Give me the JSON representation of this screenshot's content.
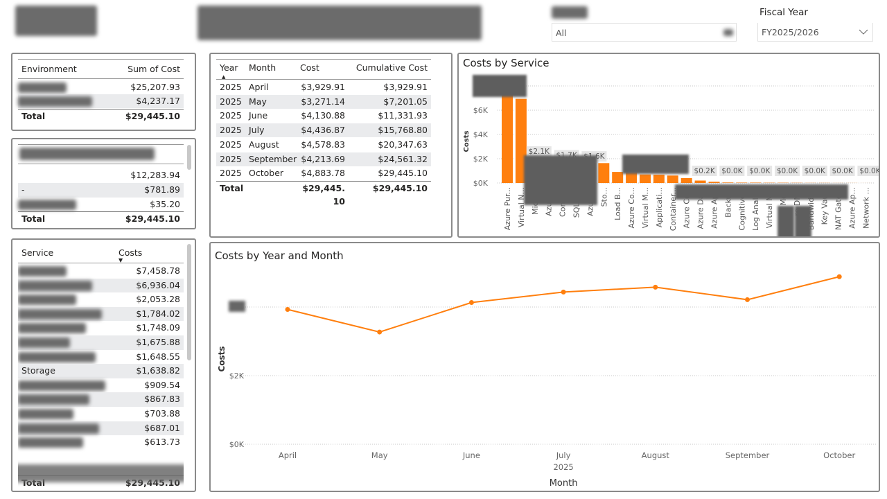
{
  "header": {
    "logo_text": "",
    "title": ""
  },
  "slicers": [
    {
      "label": "",
      "value": "All"
    },
    {
      "label": "Fiscal Year",
      "value": "FY2025/2026",
      "icon": "chevron-down-icon"
    }
  ],
  "environment_table": {
    "columns": [
      "Environment",
      "Sum of Cost"
    ],
    "rows": [
      {
        "name": "",
        "value": "$25,207.93"
      },
      {
        "name": "",
        "value": "$4,237.17"
      }
    ],
    "total_label": "Total",
    "total_value": "$29,445.10"
  },
  "second_table": {
    "rows": [
      {
        "name": "",
        "value": "$12,283.94"
      },
      {
        "name": "-",
        "value": "$781.89"
      },
      {
        "name": "",
        "value": "$35.20"
      }
    ],
    "total_label": "Total",
    "total_value": "$29,445.10"
  },
  "service_table": {
    "columns": [
      "Service",
      "Costs"
    ],
    "sort": "descending",
    "rows": [
      {
        "name": "",
        "value": "$7,458.78"
      },
      {
        "name": "",
        "value": "$6,936.04"
      },
      {
        "name": "",
        "value": "$2,053.28"
      },
      {
        "name": "",
        "value": "$1,784.02"
      },
      {
        "name": "",
        "value": "$1,748.09"
      },
      {
        "name": "",
        "value": "$1,675.88"
      },
      {
        "name": "",
        "value": "$1,648.55"
      },
      {
        "name": "Storage",
        "value": "$1,638.82"
      },
      {
        "name": "",
        "value": "$909.54"
      },
      {
        "name": "",
        "value": "$867.83"
      },
      {
        "name": "",
        "value": "$703.88"
      },
      {
        "name": "",
        "value": "$687.01"
      },
      {
        "name": "",
        "value": "$613.73"
      }
    ],
    "total_label": "Total",
    "total_value": "$29,445.10"
  },
  "month_table": {
    "columns": [
      "Year",
      "Month",
      "Cost",
      "Cumulative Cost"
    ],
    "rows": [
      [
        "2025",
        "April",
        "$3,929.91",
        "$3,929.91"
      ],
      [
        "2025",
        "May",
        "$3,271.14",
        "$7,201.05"
      ],
      [
        "2025",
        "June",
        "$4,130.88",
        "$11,331.93"
      ],
      [
        "2025",
        "July",
        "$4,436.87",
        "$15,768.80"
      ],
      [
        "2025",
        "August",
        "$4,578.83",
        "$20,347.63"
      ],
      [
        "2025",
        "September",
        "$4,213.69",
        "$24,561.32"
      ],
      [
        "2025",
        "October",
        "$4,883.78",
        "$29,445.10"
      ]
    ],
    "total_label": "Total",
    "total_cost": "$29,445.10",
    "total_cumulative": "$29,445.10"
  },
  "chart_data": [
    {
      "type": "bar",
      "title": "Costs by Service",
      "xlabel": "",
      "ylabel": "Costs",
      "color": "#ff7f0e",
      "ylim": [
        0,
        8000
      ],
      "yticks": [
        "$0K",
        "$2K",
        "$4K",
        "$6K"
      ],
      "grid": true,
      "categories": [
        "Azure Pur...",
        "Virtual N...",
        "Micro...",
        "Azure...",
        "Conta...",
        "SQL D...",
        "Azure...",
        "Sto...",
        "Load B...",
        "Azure Co...",
        "Virtual M...",
        "Applicati...",
        "Container...",
        "Azure Co...",
        "Azure Da...",
        "Azure Ap...",
        "Backu...",
        "Cognitive...",
        "Log Analy...",
        "Virtual M...",
        "re Mo...",
        "re DN...",
        "Bandwidt...",
        "Key Vau...",
        "NAT Gate...",
        "Azure Ap...",
        "Network ..."
      ],
      "values": [
        7458.78,
        6936.04,
        2053.28,
        1784.02,
        1748.09,
        1675.88,
        1648.55,
        1638.82,
        909.54,
        867.83,
        703.88,
        687.01,
        613.73,
        400,
        200,
        100,
        40,
        30,
        30,
        20,
        20,
        15,
        10,
        10,
        5,
        5,
        2
      ],
      "data_labels": {
        "2": "$2.1K",
        "4": "$1.7K",
        "6": "$1.6K",
        "14": "$0.2K",
        "16": "$0.0K",
        "18": "$0.0K",
        "20": "$0.0K",
        "22": "$0.0K",
        "24": "$0.0K",
        "26": "$0.0K"
      }
    },
    {
      "type": "line",
      "title": "Costs by Year and Month",
      "xlabel": "Month",
      "ylabel": "Costs",
      "color": "#ff7f0e",
      "ylim": [
        0,
        5300
      ],
      "yticks": [
        "$0K",
        "$2K"
      ],
      "grid": true,
      "x_group": "2025",
      "categories": [
        "April",
        "May",
        "June",
        "July",
        "August",
        "September",
        "October"
      ],
      "values": [
        3929.91,
        3271.14,
        4130.88,
        4436.87,
        4578.83,
        4213.69,
        4883.78
      ]
    }
  ]
}
